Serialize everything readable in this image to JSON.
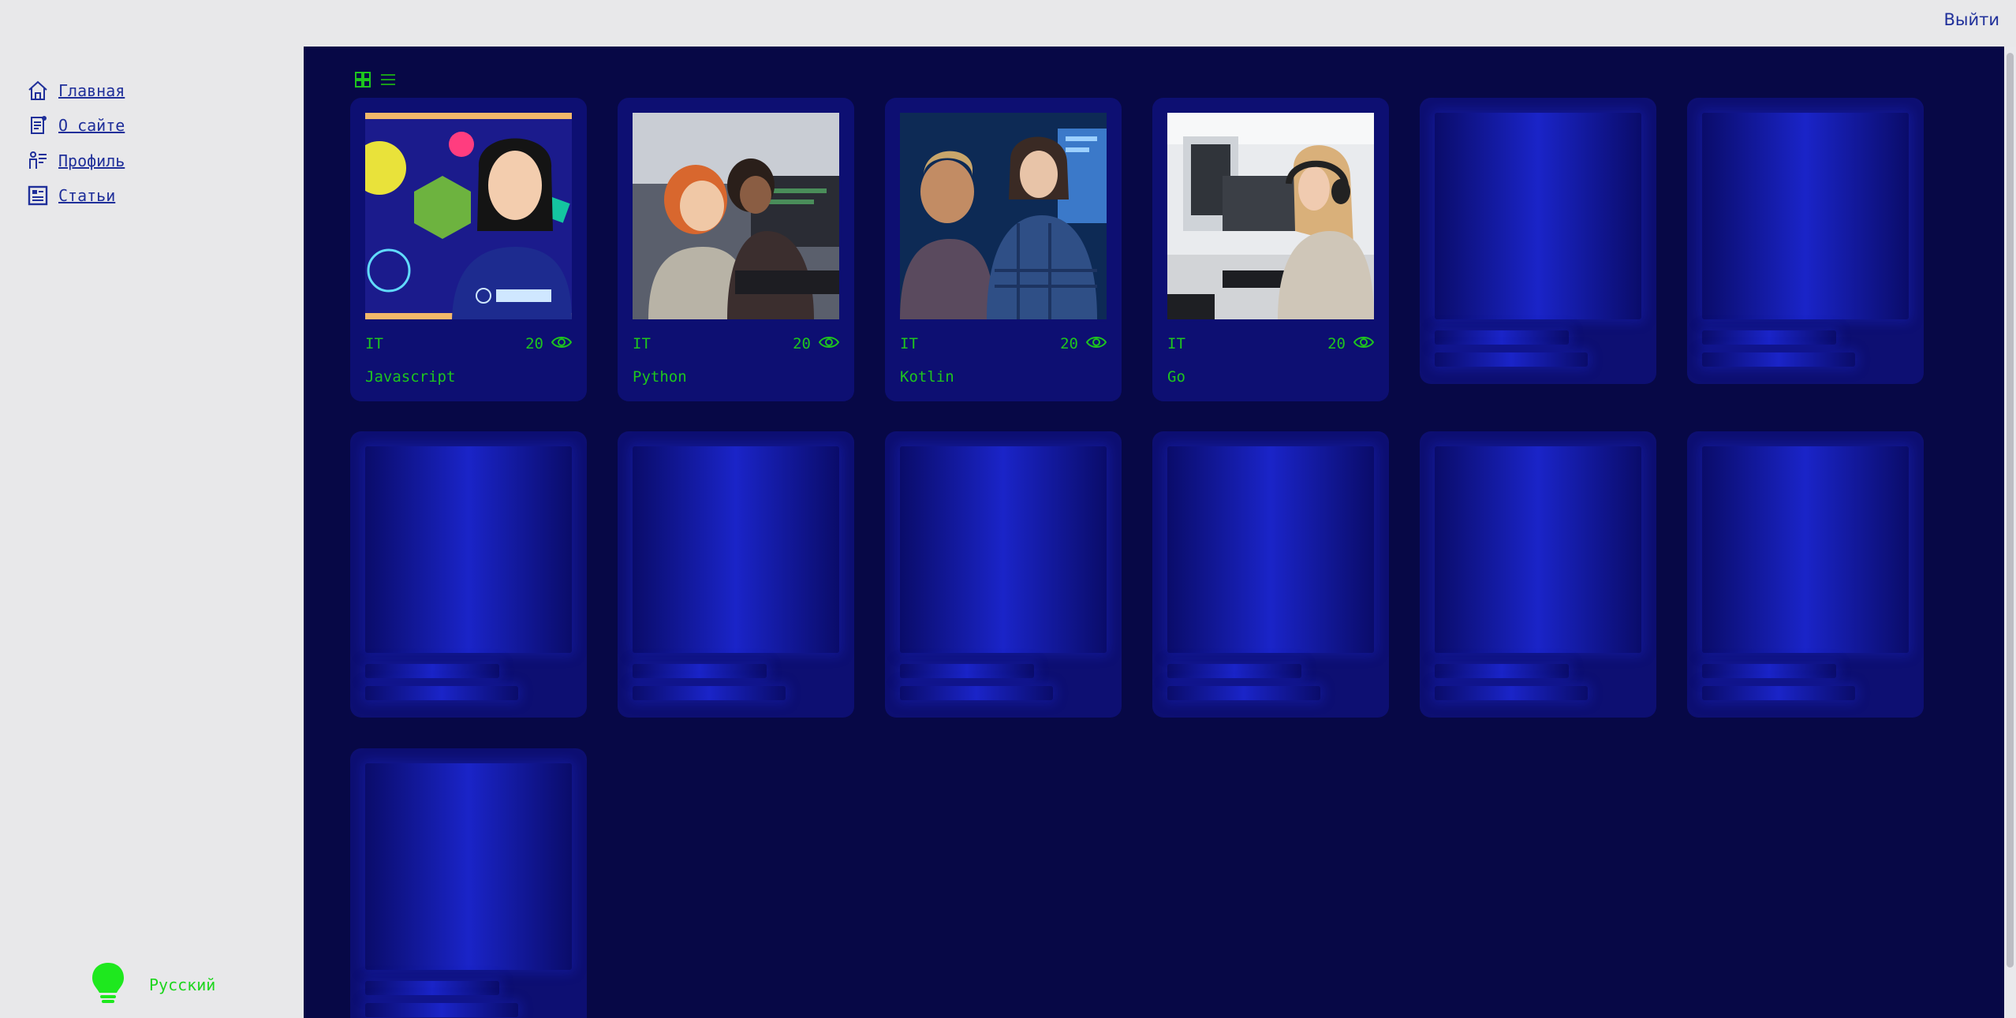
{
  "header": {
    "logout_label": "Выйти"
  },
  "sidebar": {
    "items": [
      {
        "label": "Главная",
        "icon": "home-icon"
      },
      {
        "label": "О сайте",
        "icon": "document-icon"
      },
      {
        "label": "Профиль",
        "icon": "profile-icon"
      },
      {
        "label": "Статьи",
        "icon": "article-icon"
      }
    ],
    "language_label": "Русский",
    "theme_icon": "lightbulb-icon",
    "collapse_icon": "chevron-left-icon"
  },
  "view_switch": {
    "tile_icon": "grid-view-icon",
    "list_icon": "list-view-icon"
  },
  "articles": [
    {
      "type": "IT",
      "views": "20",
      "title": "Javascript"
    },
    {
      "type": "IT",
      "views": "20",
      "title": "Python"
    },
    {
      "type": "IT",
      "views": "20",
      "title": "Kotlin"
    },
    {
      "type": "IT",
      "views": "20",
      "title": "Go"
    }
  ],
  "colors": {
    "accent": "#1ec51e",
    "link": "#1f2f9a",
    "main_bg": "#070846",
    "card_bg": "#0d0f72"
  }
}
